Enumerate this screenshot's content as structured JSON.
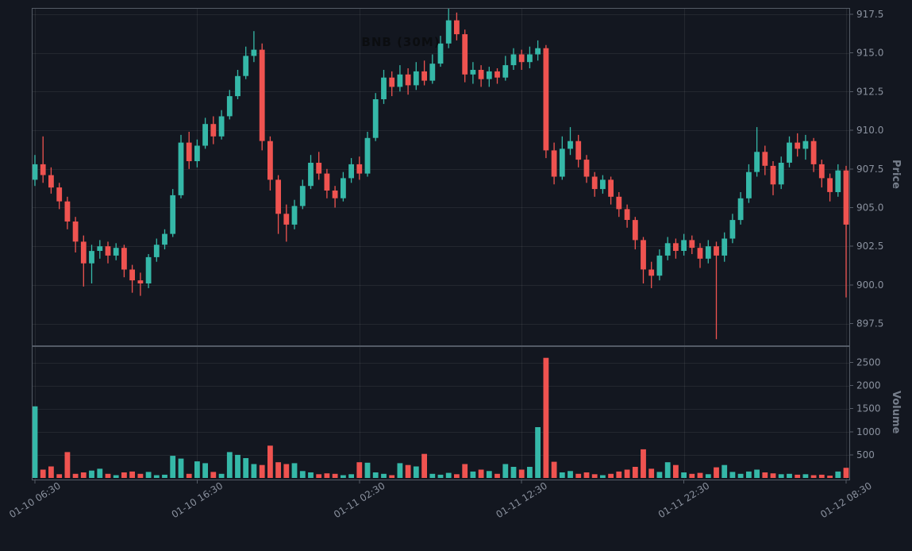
{
  "chart_data": {
    "type": "candlestick",
    "title": "BNB (30M)",
    "symbol": "BNB",
    "interval": "30M",
    "ylabel_price": "Price",
    "ylabel_volume": "Volume",
    "x_tick_labels": [
      "01-10 06:30",
      "01-10 16:30",
      "01-11 02:30",
      "01-11 12:30",
      "01-11 22:30",
      "01-12 08:30"
    ],
    "x_tick_indices": [
      0,
      20,
      40,
      60,
      80,
      100
    ],
    "price_ticks": [
      "897.5",
      "900.0",
      "902.5",
      "905.0",
      "907.5",
      "910.0",
      "912.5",
      "915.0",
      "917.5"
    ],
    "volume_ticks": [
      500,
      1000,
      1500,
      2000,
      2500
    ],
    "price_range": [
      896.1,
      917.9
    ],
    "volume_range": [
      0,
      2750
    ],
    "grid": true,
    "legend": false,
    "colors": {
      "up": "#35b8a8",
      "down": "#ef5350",
      "background": "#131720",
      "grid": "rgba(255,255,255,0.07)",
      "spine": "#545b66",
      "axis_text": "#8a919e"
    },
    "candle_fields": [
      "open",
      "high",
      "low",
      "close",
      "volume"
    ],
    "candles": [
      [
        906.8,
        908.4,
        906.4,
        907.8,
        1550
      ],
      [
        907.8,
        909.6,
        906.6,
        907.1,
        180
      ],
      [
        907.1,
        907.6,
        905.9,
        906.3,
        250
      ],
      [
        906.3,
        906.6,
        904.9,
        905.4,
        80
      ],
      [
        905.4,
        905.7,
        903.6,
        904.1,
        560
      ],
      [
        904.1,
        904.4,
        902.1,
        902.8,
        90
      ],
      [
        902.8,
        903.2,
        899.9,
        901.4,
        120
      ],
      [
        901.4,
        902.6,
        900.1,
        902.2,
        160
      ],
      [
        902.2,
        902.9,
        901.7,
        902.5,
        200
      ],
      [
        902.5,
        902.8,
        901.4,
        901.9,
        90
      ],
      [
        901.9,
        902.7,
        901.6,
        902.4,
        60
      ],
      [
        902.4,
        902.6,
        900.5,
        901.0,
        120
      ],
      [
        901.0,
        901.3,
        899.5,
        900.3,
        140
      ],
      [
        900.3,
        900.8,
        899.3,
        900.1,
        90
      ],
      [
        900.1,
        902.0,
        899.8,
        901.8,
        130
      ],
      [
        901.8,
        903.0,
        901.5,
        902.6,
        60
      ],
      [
        902.6,
        903.6,
        902.3,
        903.3,
        70
      ],
      [
        903.3,
        906.2,
        903.1,
        905.8,
        480
      ],
      [
        905.8,
        909.7,
        905.6,
        909.2,
        420
      ],
      [
        909.2,
        909.9,
        907.5,
        908.0,
        90
      ],
      [
        908.0,
        909.4,
        907.6,
        909.0,
        360
      ],
      [
        909.0,
        910.8,
        908.8,
        910.4,
        320
      ],
      [
        910.4,
        910.9,
        909.1,
        909.6,
        130
      ],
      [
        909.6,
        911.3,
        909.4,
        910.9,
        90
      ],
      [
        910.9,
        912.6,
        910.7,
        912.2,
        560
      ],
      [
        912.2,
        913.9,
        912.0,
        913.5,
        500
      ],
      [
        913.5,
        915.4,
        913.3,
        914.8,
        430
      ],
      [
        914.8,
        916.4,
        914.4,
        915.2,
        300
      ],
      [
        915.2,
        915.6,
        908.7,
        909.3,
        280
      ],
      [
        909.3,
        909.6,
        906.1,
        906.8,
        700
      ],
      [
        906.8,
        907.1,
        903.3,
        904.6,
        340
      ],
      [
        904.6,
        905.2,
        902.8,
        903.9,
        300
      ],
      [
        903.9,
        905.5,
        903.6,
        905.1,
        320
      ],
      [
        905.1,
        906.8,
        904.9,
        906.4,
        150
      ],
      [
        906.4,
        908.4,
        906.2,
        907.9,
        120
      ],
      [
        907.9,
        908.6,
        906.8,
        907.2,
        80
      ],
      [
        907.2,
        907.5,
        905.6,
        906.1,
        100
      ],
      [
        906.1,
        906.4,
        905.0,
        905.6,
        90
      ],
      [
        905.6,
        907.3,
        905.4,
        906.9,
        60
      ],
      [
        906.9,
        908.2,
        906.6,
        907.8,
        80
      ],
      [
        907.8,
        908.3,
        906.8,
        907.2,
        340
      ],
      [
        907.2,
        909.9,
        907.0,
        909.5,
        330
      ],
      [
        909.5,
        912.4,
        909.3,
        912.0,
        120
      ],
      [
        912.0,
        913.9,
        911.7,
        913.4,
        90
      ],
      [
        913.4,
        913.8,
        912.2,
        912.8,
        60
      ],
      [
        912.8,
        914.2,
        912.5,
        913.6,
        320
      ],
      [
        913.6,
        914.0,
        912.3,
        912.9,
        280
      ],
      [
        912.9,
        914.4,
        912.6,
        913.8,
        250
      ],
      [
        913.8,
        914.5,
        912.9,
        913.2,
        520
      ],
      [
        913.2,
        914.9,
        913.0,
        914.3,
        90
      ],
      [
        914.3,
        916.1,
        914.1,
        915.6,
        70
      ],
      [
        915.6,
        917.9,
        915.3,
        917.1,
        110
      ],
      [
        917.1,
        917.6,
        915.8,
        916.2,
        80
      ],
      [
        916.2,
        916.5,
        913.1,
        913.6,
        300
      ],
      [
        913.6,
        914.4,
        913.0,
        913.9,
        140
      ],
      [
        913.9,
        914.2,
        912.8,
        913.3,
        180
      ],
      [
        913.3,
        914.1,
        912.8,
        913.8,
        150
      ],
      [
        913.8,
        914.0,
        913.0,
        913.4,
        90
      ],
      [
        913.4,
        914.8,
        913.2,
        914.2,
        300
      ],
      [
        914.2,
        915.3,
        913.9,
        914.9,
        240
      ],
      [
        914.9,
        915.2,
        913.9,
        914.4,
        180
      ],
      [
        914.4,
        915.4,
        914.0,
        914.9,
        240
      ],
      [
        914.9,
        915.8,
        914.5,
        915.3,
        1100
      ],
      [
        915.3,
        915.5,
        908.2,
        908.7,
        2600
      ],
      [
        908.7,
        909.2,
        906.5,
        907.0,
        350
      ],
      [
        907.0,
        909.6,
        906.8,
        908.8,
        120
      ],
      [
        908.8,
        910.2,
        908.4,
        909.3,
        150
      ],
      [
        909.3,
        909.7,
        907.6,
        908.1,
        90
      ],
      [
        908.1,
        908.4,
        906.6,
        907.0,
        120
      ],
      [
        907.0,
        907.3,
        905.7,
        906.2,
        80
      ],
      [
        906.2,
        907.1,
        905.9,
        906.8,
        60
      ],
      [
        906.8,
        907.0,
        905.2,
        905.7,
        90
      ],
      [
        905.7,
        906.0,
        904.4,
        904.9,
        140
      ],
      [
        904.9,
        905.2,
        903.7,
        904.2,
        180
      ],
      [
        904.2,
        904.4,
        902.3,
        902.9,
        240
      ],
      [
        902.9,
        903.1,
        900.1,
        901.0,
        620
      ],
      [
        901.0,
        901.5,
        899.8,
        900.6,
        200
      ],
      [
        900.6,
        902.3,
        900.3,
        901.9,
        130
      ],
      [
        901.9,
        903.1,
        901.6,
        902.7,
        340
      ],
      [
        902.7,
        903.0,
        901.7,
        902.2,
        280
      ],
      [
        902.2,
        903.3,
        901.9,
        902.9,
        120
      ],
      [
        902.9,
        903.2,
        902.0,
        902.4,
        90
      ],
      [
        902.4,
        902.7,
        901.1,
        901.7,
        110
      ],
      [
        901.7,
        902.9,
        901.4,
        902.5,
        80
      ],
      [
        902.5,
        902.8,
        896.5,
        901.9,
        230
      ],
      [
        901.9,
        903.4,
        901.5,
        903.0,
        280
      ],
      [
        903.0,
        904.6,
        902.7,
        904.2,
        130
      ],
      [
        904.2,
        906.0,
        903.9,
        905.6,
        90
      ],
      [
        905.6,
        907.8,
        905.3,
        907.3,
        140
      ],
      [
        907.3,
        910.2,
        907.0,
        908.6,
        180
      ],
      [
        908.6,
        909.0,
        907.1,
        907.7,
        120
      ],
      [
        907.7,
        908.0,
        905.8,
        906.5,
        100
      ],
      [
        906.5,
        908.3,
        906.2,
        907.9,
        80
      ],
      [
        907.9,
        909.6,
        907.6,
        909.2,
        90
      ],
      [
        909.2,
        909.8,
        908.3,
        908.8,
        70
      ],
      [
        908.8,
        909.7,
        908.1,
        909.3,
        80
      ],
      [
        909.3,
        909.5,
        907.3,
        907.8,
        60
      ],
      [
        907.8,
        908.1,
        906.3,
        906.9,
        70
      ],
      [
        906.9,
        907.2,
        905.4,
        906.0,
        50
      ],
      [
        906.0,
        907.8,
        905.7,
        907.4,
        140
      ],
      [
        907.4,
        907.7,
        899.2,
        903.9,
        220
      ]
    ]
  }
}
